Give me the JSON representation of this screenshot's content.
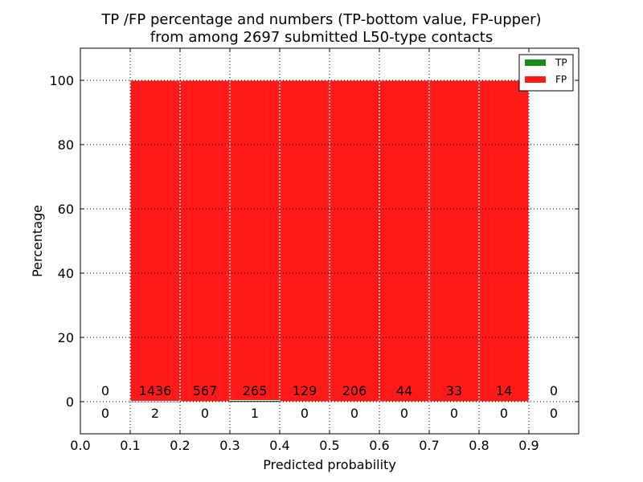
{
  "chart_data": {
    "type": "bar",
    "title_lines": [
      "TP /FP percentage and numbers (TP-bottom value, FP-upper)",
      "from among 2697 submitted L50-type contacts"
    ],
    "xlabel": "Predicted probability",
    "ylabel": "Percentage",
    "xlim": [
      0.0,
      1.0
    ],
    "ylim": [
      -10,
      110
    ],
    "xticks": [
      "0.0",
      "0.1",
      "0.2",
      "0.3",
      "0.4",
      "0.5",
      "0.6",
      "0.7",
      "0.8",
      "0.9"
    ],
    "xtick_values": [
      0.0,
      0.1,
      0.2,
      0.3,
      0.4,
      0.5,
      0.6,
      0.7,
      0.8,
      0.9
    ],
    "yticks": [
      "0",
      "20",
      "40",
      "60",
      "80",
      "100"
    ],
    "ytick_values": [
      0,
      20,
      40,
      60,
      80,
      100
    ],
    "grid": true,
    "legend_position": "top-right",
    "series": [
      {
        "name": "TP",
        "color": "#1a8a1a"
      },
      {
        "name": "FP",
        "color": "#ff1a1a"
      }
    ],
    "bins": [
      {
        "x0": 0.0,
        "x1": 0.1,
        "tp_pct": 0,
        "fp_pct": 0,
        "tp_count": "0",
        "fp_count": "0"
      },
      {
        "x0": 0.1,
        "x1": 0.2,
        "tp_pct": 0.139,
        "fp_pct": 99.861,
        "tp_count": "2",
        "fp_count": "1436"
      },
      {
        "x0": 0.2,
        "x1": 0.3,
        "tp_pct": 0,
        "fp_pct": 100,
        "tp_count": "0",
        "fp_count": "567"
      },
      {
        "x0": 0.3,
        "x1": 0.4,
        "tp_pct": 0.376,
        "fp_pct": 99.624,
        "tp_count": "1",
        "fp_count": "265"
      },
      {
        "x0": 0.4,
        "x1": 0.5,
        "tp_pct": 0,
        "fp_pct": 100,
        "tp_count": "0",
        "fp_count": "129"
      },
      {
        "x0": 0.5,
        "x1": 0.6,
        "tp_pct": 0,
        "fp_pct": 100,
        "tp_count": "0",
        "fp_count": "206"
      },
      {
        "x0": 0.6,
        "x1": 0.7,
        "tp_pct": 0,
        "fp_pct": 100,
        "tp_count": "0",
        "fp_count": "44"
      },
      {
        "x0": 0.7,
        "x1": 0.8,
        "tp_pct": 0,
        "fp_pct": 100,
        "tp_count": "0",
        "fp_count": "33"
      },
      {
        "x0": 0.8,
        "x1": 0.9,
        "tp_pct": 0,
        "fp_pct": 100,
        "tp_count": "0",
        "fp_count": "14"
      },
      {
        "x0": 0.9,
        "x1": 1.0,
        "tp_pct": 0,
        "fp_pct": 0,
        "tp_count": "0",
        "fp_count": "0"
      }
    ]
  }
}
